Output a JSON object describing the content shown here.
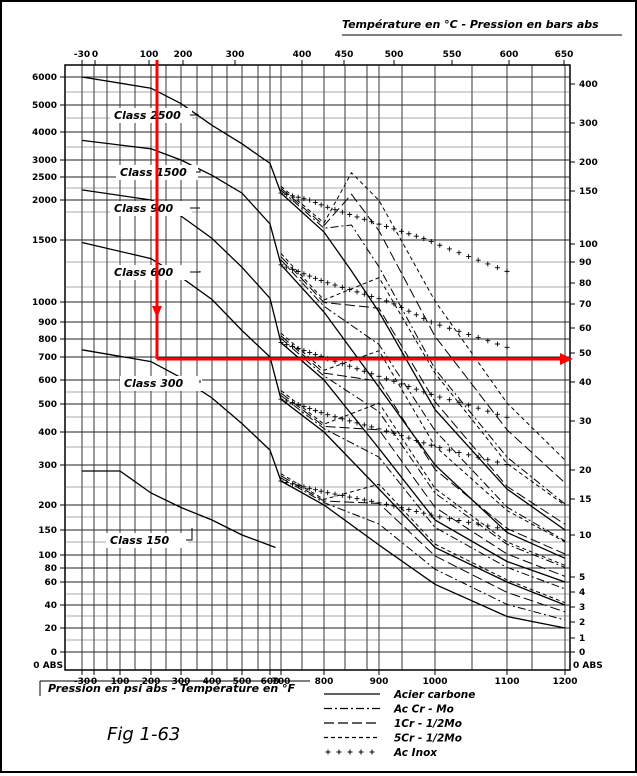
{
  "top_axis_title": "Température en °C   -   Pression en bars abs",
  "bottom_axis_title": "Pression en psi abs  -  Température en °F",
  "figure_label": "Fig 1-63",
  "chart_data": {
    "type": "line",
    "x_top_ticks": [
      "-30",
      "0",
      "100",
      "200",
      "300",
      "400",
      "450",
      "500",
      "550",
      "600",
      "650"
    ],
    "x_bottom_ticks": [
      "-30",
      "0",
      "100",
      "200",
      "300",
      "400",
      "500",
      "600",
      "700",
      "800",
      "900",
      "1000",
      "1100",
      "1200"
    ],
    "y_left_ticks": [
      "6000",
      "5000",
      "4000",
      "3000",
      "2500",
      "2000",
      "1500",
      "1000",
      "900",
      "800",
      "700",
      "600",
      "500",
      "400",
      "300",
      "200",
      "150",
      "100",
      "80",
      "60",
      "40",
      "20",
      "0"
    ],
    "y_right_ticks": [
      "400",
      "300",
      "200",
      "150",
      "100",
      "90",
      "80",
      "70",
      "60",
      "50",
      "40",
      "30",
      "20",
      "15",
      "10",
      "5",
      "4",
      "3",
      "2",
      "1",
      "0"
    ],
    "left_corner_label": "0 ABS",
    "right_corner_label": "0 ABS",
    "x_unit": "°F",
    "y_unit": "psi abs",
    "classes": [
      {
        "label": "Class 2500",
        "points": [
          [
            -30,
            6170
          ],
          [
            200,
            5600
          ],
          [
            300,
            5050
          ],
          [
            400,
            4250
          ],
          [
            500,
            3580
          ],
          [
            600,
            2900
          ],
          [
            700,
            2150
          ],
          [
            800,
            1600
          ],
          [
            850,
            1250
          ],
          [
            900,
            950
          ],
          [
            1000,
            480
          ],
          [
            1100,
            240
          ],
          [
            1200,
            150
          ]
        ]
      },
      {
        "label": "Class 1500",
        "points": [
          [
            -30,
            3700
          ],
          [
            200,
            3400
          ],
          [
            300,
            3000
          ],
          [
            400,
            2550
          ],
          [
            500,
            2150
          ],
          [
            600,
            1700
          ],
          [
            700,
            1300
          ],
          [
            800,
            950
          ],
          [
            900,
            570
          ],
          [
            1000,
            300
          ],
          [
            1100,
            145
          ],
          [
            1200,
            95
          ]
        ]
      },
      {
        "label": "Class 900",
        "points": [
          [
            -30,
            2220
          ],
          [
            200,
            2000
          ],
          [
            300,
            1800
          ],
          [
            400,
            1520
          ],
          [
            500,
            1280
          ],
          [
            600,
            1030
          ],
          [
            700,
            780
          ],
          [
            800,
            600
          ],
          [
            900,
            350
          ],
          [
            1000,
            170
          ],
          [
            1100,
            90
          ],
          [
            1200,
            60
          ]
        ]
      },
      {
        "label": "Class 600",
        "points": [
          [
            -30,
            1480
          ],
          [
            200,
            1350
          ],
          [
            300,
            1200
          ],
          [
            400,
            1020
          ],
          [
            500,
            850
          ],
          [
            600,
            700
          ],
          [
            700,
            520
          ],
          [
            800,
            400
          ],
          [
            900,
            240
          ],
          [
            1000,
            115
          ],
          [
            1100,
            60
          ],
          [
            1200,
            40
          ]
        ]
      },
      {
        "label": "Class 300",
        "points": [
          [
            -30,
            740
          ],
          [
            200,
            680
          ],
          [
            300,
            610
          ],
          [
            400,
            525
          ],
          [
            500,
            430
          ],
          [
            600,
            345
          ],
          [
            700,
            260
          ],
          [
            800,
            200
          ],
          [
            900,
            120
          ],
          [
            1000,
            58
          ],
          [
            1100,
            30
          ],
          [
            1200,
            20
          ]
        ]
      },
      {
        "label": "Class 150",
        "points": [
          [
            -30,
            285
          ],
          [
            100,
            285
          ],
          [
            200,
            230
          ],
          [
            300,
            195
          ],
          [
            400,
            170
          ],
          [
            500,
            140
          ],
          [
            650,
            115
          ]
        ]
      }
    ],
    "series": [
      {
        "name": "Acier carbone",
        "style": "solid"
      },
      {
        "name": "Ac Cr  -  Mo",
        "style": "dashdot"
      },
      {
        "name": "1Cr  -  1/2Mo",
        "style": "longdash"
      },
      {
        "name": "5Cr  -  1/2Mo",
        "style": "dashed"
      },
      {
        "name": "Ac Inox",
        "style": "plus-markers"
      }
    ],
    "highlight_line": {
      "color": "#ff0000",
      "from_temperature_F": 300,
      "to_pressure_psi": 690
    }
  }
}
